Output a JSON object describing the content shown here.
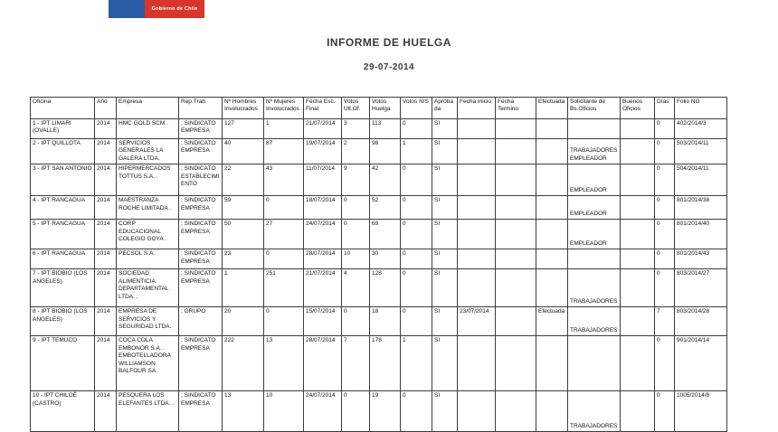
{
  "logo": {
    "text": "Gobierno de Chile"
  },
  "header": {
    "title": "INFORME DE HUELGA",
    "date": "29-07-2014"
  },
  "colors": {
    "logo_blue": "#2a5ba7",
    "logo_red": "#d8352b",
    "text": "#1a1a1a"
  },
  "table": {
    "columns": [
      "Oficina",
      "Año",
      "Empresa",
      "Rep.Trab.",
      "Nº Hombres\nInvolucrados",
      "Nº Mujeres\nInvolucrados",
      "Fecha Esc.\nFinal",
      "Votos\nUlt.Of.",
      "Votos\nHuelga",
      "Votos N/S",
      "Aprobada",
      "Fecha Inicio",
      "Fecha\nTermino",
      "Efectuada",
      "Solicitante de\nBs.Oficios",
      "Buenos\nOficios",
      "Días",
      "Folio NG"
    ],
    "rows": [
      [
        "1 - IPT LIMARI (OVALLE)",
        "2014",
        "HMC GOLD SCM .",
        "; SINDICATO EMPRESA",
        "127",
        "1",
        "21/07/2014",
        "3",
        "113",
        "0",
        "SI",
        "",
        "",
        "",
        "",
        "",
        "0",
        "402/2014/3"
      ],
      [
        "2 - IPT QUILLOTA",
        "2014",
        "SERVICIOS GENERALES LA GALERA LTDA.",
        "; SINDICATO EMPRESA",
        "40",
        "87",
        "19/07/2014",
        "2",
        "98",
        "1",
        "SI",
        "",
        "",
        "",
        "TRABAJADORES EMPLEADOR",
        "",
        "0",
        "503/2014/11"
      ],
      [
        "3 - IPT SAN ANTONIO",
        "2014",
        "HIPERMERCADOS TOTTUS S.A. .",
        "; SINDICATO ESTABLECIMIENTO",
        "22",
        "43",
        "11/07/2014",
        "9",
        "42",
        "0",
        "SI",
        "",
        "",
        "",
        "EMPLEADOR",
        "",
        "0",
        "504/2014/11"
      ],
      [
        "4 - IPT RANCAGUA",
        "2014",
        "MAESTRANZA ROCHE LIMITADA .",
        "; SINDICATO EMPRESA",
        "59",
        "0",
        "18/07/2014",
        "0",
        "52",
        "0",
        "SI",
        "",
        "",
        "",
        "EMPLEADOR",
        "",
        "0",
        "801/2014/38"
      ],
      [
        "5 - IPT RANCAGUA",
        "2014",
        "CORP EDUCACIONAL COLEGIO GOYA .",
        "; SINDICATO EMPRESA",
        "50",
        "27",
        "24/07/2014",
        "0",
        "69",
        "0",
        "SI",
        "",
        "",
        "",
        "EMPLEADOR",
        "",
        "0",
        "801/2014/40"
      ],
      [
        "6 - IPT RANCAGUA",
        "2014",
        "PECSOL S.A.",
        "; SINDICATO EMPRESA",
        "23",
        "0",
        "28/07/2014",
        "10",
        "30",
        "0",
        "SI",
        "",
        "",
        "",
        "",
        "",
        "0",
        "801/2014/43"
      ],
      [
        "7 - IPT BIOBIO (LOS ANGELES)",
        "2014",
        "SOCIEDAD ALIMENTICIA DEPARTAMENTAL LTDA. .",
        "; SINDICATO EMPRESA",
        "1",
        "251",
        "21/07/2014",
        "4",
        "128",
        "0",
        "SI",
        "",
        "",
        "",
        "TRABAJADORES",
        "",
        "0",
        "803/2014/27"
      ],
      [
        "8 - IPT BIOBIO (LOS ANGELES)",
        "2014",
        "EMPRESA DE SERVICIOS Y SEGURIDAD LTDA.",
        "; GRUPO",
        "20",
        "0",
        "15/07/2014",
        "0",
        "18",
        "0",
        "SI",
        "23/07/2014",
        "",
        "Efectuada",
        "TRABAJADORES",
        "",
        "7",
        "803/2014/28"
      ],
      [
        "9 - IPT TEMUCO",
        "2014",
        "COCA COLA EMBONOR S.A. . EMBOTELLADORA WILLIAMSON BALFOUR SA .",
        "; SINDICATO EMPRESA",
        "222",
        "13",
        "28/07/2014",
        "7",
        "178",
        "1",
        "SI",
        "",
        "",
        "",
        "",
        "",
        "0",
        "901/2014/14"
      ],
      [
        "10 - IPT CHILOÉ (CASTRO)",
        "2014",
        "PESQUERA LOS ELEFANTES LTDA. .",
        "; SINDICATO EMPRESA",
        "13",
        "10",
        "24/07/2014",
        "0",
        "19",
        "0",
        "SI",
        "",
        "",
        "",
        "TRABAJADORES",
        "",
        "0",
        "1005/2014/8"
      ]
    ]
  }
}
